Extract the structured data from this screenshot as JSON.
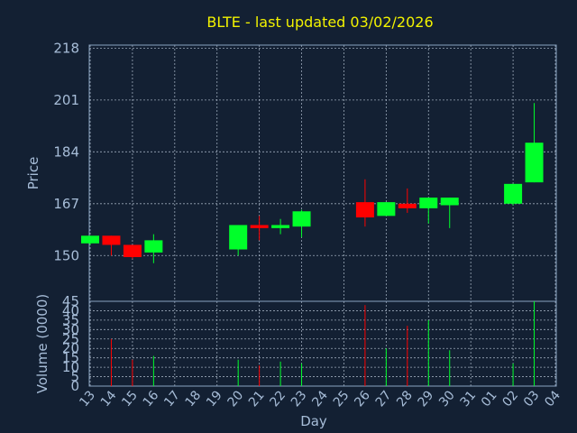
{
  "chart_data": {
    "type": "candlestick",
    "title": "BLTE - last updated 03/02/2026",
    "xlabel": "Day",
    "price_panel": {
      "ylabel": "Price",
      "yticks": [
        150,
        167,
        184,
        201,
        218
      ],
      "ylim": [
        135,
        219
      ]
    },
    "volume_panel": {
      "ylabel": "Volume (0000)",
      "yticks": [
        0,
        5,
        10,
        15,
        20,
        25,
        30,
        35,
        40,
        45
      ],
      "ylim": [
        0,
        45
      ]
    },
    "x_tick_labels": [
      "13",
      "14",
      "15",
      "16",
      "17",
      "18",
      "19",
      "20",
      "21",
      "22",
      "23",
      "24",
      "25",
      "26",
      "27",
      "28",
      "29",
      "30",
      "31",
      "01",
      "02",
      "03",
      "04"
    ],
    "colors": {
      "up": "#00ff2a",
      "down": "#ff0000",
      "background": "#132033"
    },
    "candles": [
      {
        "day": "13",
        "open": 154.0,
        "high": 156.5,
        "low": 153.5,
        "close": 156.5,
        "volume": 0
      },
      {
        "day": "14",
        "open": 156.5,
        "high": 156.5,
        "low": 150.0,
        "close": 153.5,
        "volume": 25
      },
      {
        "day": "15",
        "open": 153.5,
        "high": 153.5,
        "low": 149.0,
        "close": 149.5,
        "volume": 14
      },
      {
        "day": "16",
        "open": 151.0,
        "high": 157.0,
        "low": 147.5,
        "close": 155.0,
        "volume": 16
      },
      {
        "day": "20",
        "open": 152.0,
        "high": 160.0,
        "low": 150.0,
        "close": 160.0,
        "volume": 14
      },
      {
        "day": "21",
        "open": 160.0,
        "high": 163.0,
        "low": 155.0,
        "close": 159.0,
        "volume": 11
      },
      {
        "day": "22",
        "open": 159.0,
        "high": 162.0,
        "low": 157.0,
        "close": 160.0,
        "volume": 13
      },
      {
        "day": "23",
        "open": 159.5,
        "high": 165.0,
        "low": 156.0,
        "close": 164.5,
        "volume": 12
      },
      {
        "day": "26",
        "open": 167.5,
        "high": 175.0,
        "low": 159.5,
        "close": 162.5,
        "volume": 43
      },
      {
        "day": "27",
        "open": 163.0,
        "high": 167.5,
        "low": 163.0,
        "close": 167.5,
        "volume": 20
      },
      {
        "day": "28",
        "open": 167.0,
        "high": 172.0,
        "low": 164.0,
        "close": 165.5,
        "volume": 32
      },
      {
        "day": "29",
        "open": 165.5,
        "high": 169.0,
        "low": 160.5,
        "close": 169.0,
        "volume": 35
      },
      {
        "day": "30",
        "open": 166.5,
        "high": 169.0,
        "low": 159.0,
        "close": 169.0,
        "volume": 19
      },
      {
        "day": "02",
        "open": 167.0,
        "high": 173.5,
        "low": 166.5,
        "close": 173.5,
        "volume": 12
      },
      {
        "day": "03",
        "open": 174.0,
        "high": 200.0,
        "low": 174.0,
        "close": 187.0,
        "volume": 45
      }
    ]
  }
}
